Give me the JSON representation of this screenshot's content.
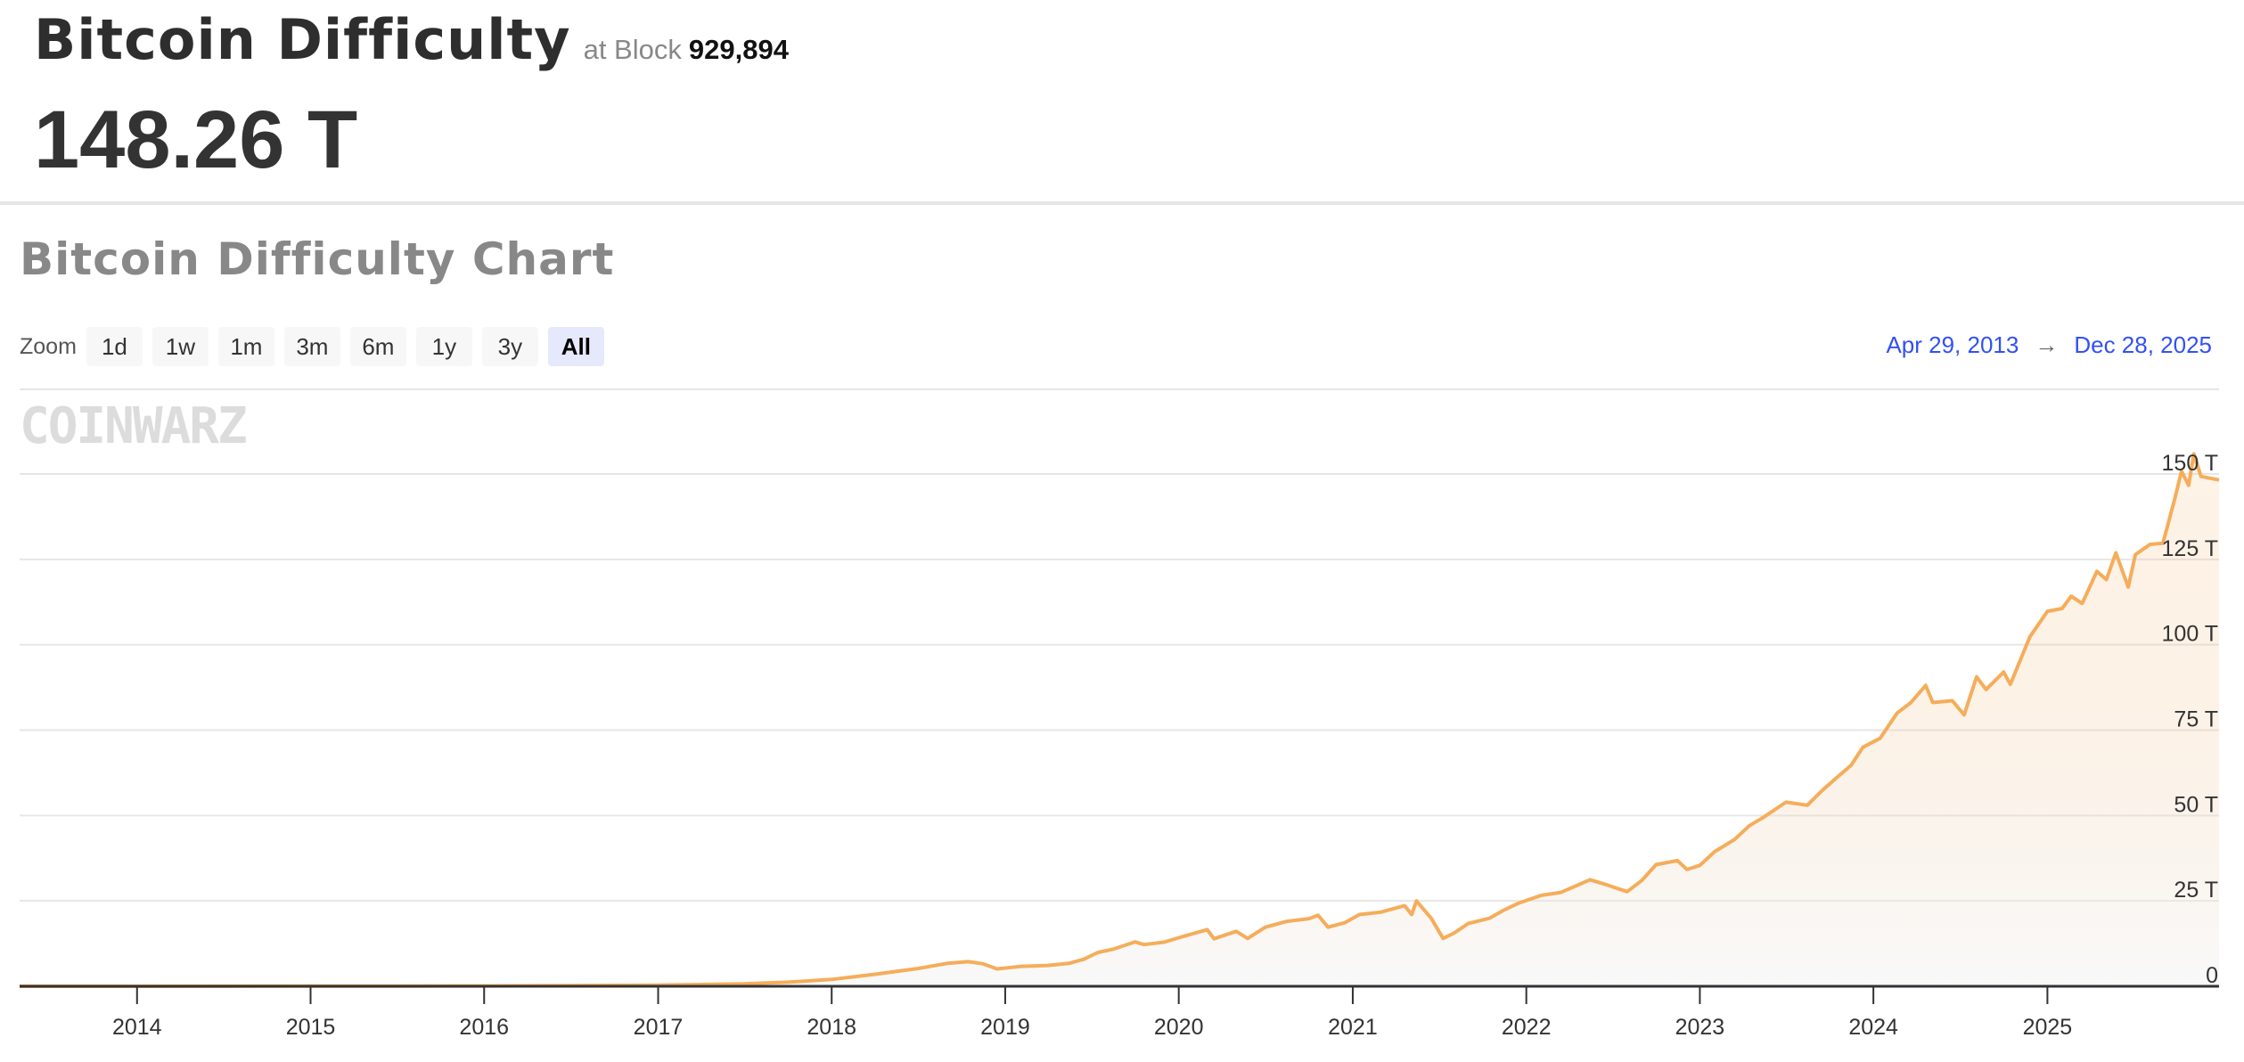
{
  "header": {
    "title": "Bitcoin Difficulty",
    "at_block_label": "at Block",
    "block_number": "929,894",
    "current_value": "148.26 T"
  },
  "chart_section": {
    "title": "Bitcoin Difficulty Chart",
    "zoom_label": "Zoom",
    "zoom_buttons": [
      {
        "label": "1d"
      },
      {
        "label": "1w"
      },
      {
        "label": "1m"
      },
      {
        "label": "3m"
      },
      {
        "label": "6m"
      },
      {
        "label": "1y"
      },
      {
        "label": "3y"
      },
      {
        "label": "All",
        "selected": true
      }
    ],
    "range_from": "Apr 29, 2013",
    "range_to": "Dec 28, 2025",
    "range_arrow_icon": "arrow-right-icon",
    "watermark": "CoinWarz"
  },
  "colors": {
    "line": "#f5ad5b",
    "range_text": "#3350f5",
    "selected_zoom": "#e6e9fb"
  },
  "chart_data": {
    "type": "area",
    "xlabel": "",
    "ylabel": "",
    "xlim": [
      "2013-04-29",
      "2025-12-28"
    ],
    "ylim": [
      0,
      150
    ],
    "y_ticks": [
      {
        "v": 0,
        "label": "0"
      },
      {
        "v": 25,
        "label": "25 T"
      },
      {
        "v": 50,
        "label": "50 T"
      },
      {
        "v": 75,
        "label": "75 T"
      },
      {
        "v": 100,
        "label": "100 T"
      },
      {
        "v": 125,
        "label": "125 T"
      },
      {
        "v": 150,
        "label": "150 T"
      }
    ],
    "x_ticks": [
      "2014",
      "2015",
      "2016",
      "2017",
      "2018",
      "2019",
      "2020",
      "2021",
      "2022",
      "2023",
      "2024",
      "2025"
    ],
    "grid": true,
    "unit": "T",
    "points": [
      [
        "2013-04-29",
        0.01
      ],
      [
        "2014-01-01",
        0.0014
      ],
      [
        "2014-07-01",
        0.017
      ],
      [
        "2015-01-01",
        0.04
      ],
      [
        "2015-07-01",
        0.05
      ],
      [
        "2016-01-01",
        0.1
      ],
      [
        "2016-07-01",
        0.2
      ],
      [
        "2017-01-01",
        0.33
      ],
      [
        "2017-07-01",
        0.7
      ],
      [
        "2017-10-01",
        1.2
      ],
      [
        "2018-01-01",
        2.0
      ],
      [
        "2018-04-01",
        3.5
      ],
      [
        "2018-07-01",
        5.2
      ],
      [
        "2018-09-01",
        6.7
      ],
      [
        "2018-10-15",
        7.2
      ],
      [
        "2018-11-15",
        6.6
      ],
      [
        "2018-12-15",
        5.1
      ],
      [
        "2019-02-01",
        5.8
      ],
      [
        "2019-04-01",
        6.1
      ],
      [
        "2019-05-15",
        6.7
      ],
      [
        "2019-06-15",
        7.9
      ],
      [
        "2019-07-15",
        9.9
      ],
      [
        "2019-08-15",
        10.8
      ],
      [
        "2019-10-01",
        13.0
      ],
      [
        "2019-10-20",
        12.2
      ],
      [
        "2019-12-01",
        12.9
      ],
      [
        "2020-01-15",
        14.8
      ],
      [
        "2020-03-01",
        16.6
      ],
      [
        "2020-03-15",
        13.9
      ],
      [
        "2020-05-01",
        16.1
      ],
      [
        "2020-05-25",
        14.0
      ],
      [
        "2020-07-01",
        17.3
      ],
      [
        "2020-08-15",
        19.0
      ],
      [
        "2020-10-01",
        19.8
      ],
      [
        "2020-10-20",
        20.8
      ],
      [
        "2020-11-10",
        17.3
      ],
      [
        "2020-12-15",
        18.6
      ],
      [
        "2021-01-15",
        21.0
      ],
      [
        "2021-03-01",
        21.7
      ],
      [
        "2021-04-20",
        23.6
      ],
      [
        "2021-05-05",
        21.0
      ],
      [
        "2021-05-15",
        25.0
      ],
      [
        "2021-06-15",
        19.9
      ],
      [
        "2021-07-10",
        14.0
      ],
      [
        "2021-08-01",
        15.5
      ],
      [
        "2021-09-01",
        18.4
      ],
      [
        "2021-10-15",
        19.9
      ],
      [
        "2021-11-15",
        22.3
      ],
      [
        "2021-12-15",
        24.3
      ],
      [
        "2022-02-01",
        26.6
      ],
      [
        "2022-03-15",
        27.5
      ],
      [
        "2022-05-15",
        31.2
      ],
      [
        "2022-06-15",
        29.9
      ],
      [
        "2022-08-01",
        27.7
      ],
      [
        "2022-09-01",
        31.0
      ],
      [
        "2022-10-01",
        35.6
      ],
      [
        "2022-11-15",
        36.8
      ],
      [
        "2022-12-05",
        34.2
      ],
      [
        "2023-01-01",
        35.4
      ],
      [
        "2023-02-01",
        39.4
      ],
      [
        "2023-03-15",
        43.0
      ],
      [
        "2023-04-15",
        47.0
      ],
      [
        "2023-05-15",
        49.5
      ],
      [
        "2023-07-01",
        53.9
      ],
      [
        "2023-08-15",
        53.0
      ],
      [
        "2023-09-15",
        57.3
      ],
      [
        "2023-10-15",
        61.0
      ],
      [
        "2023-11-15",
        64.7
      ],
      [
        "2023-12-10",
        70.0
      ],
      [
        "2024-01-15",
        72.6
      ],
      [
        "2024-02-20",
        80.0
      ],
      [
        "2024-03-20",
        83.1
      ],
      [
        "2024-04-20",
        88.1
      ],
      [
        "2024-05-05",
        83.1
      ],
      [
        "2024-06-15",
        83.6
      ],
      [
        "2024-07-10",
        79.5
      ],
      [
        "2024-08-05",
        90.6
      ],
      [
        "2024-08-25",
        86.9
      ],
      [
        "2024-10-01",
        92.0
      ],
      [
        "2024-10-15",
        88.4
      ],
      [
        "2024-11-05",
        95.5
      ],
      [
        "2024-11-25",
        102.3
      ],
      [
        "2025-01-01",
        109.8
      ],
      [
        "2025-02-01",
        110.6
      ],
      [
        "2025-02-20",
        114.2
      ],
      [
        "2025-03-15",
        112.1
      ],
      [
        "2025-04-15",
        121.5
      ],
      [
        "2025-05-05",
        119.1
      ],
      [
        "2025-05-25",
        126.9
      ],
      [
        "2025-06-20",
        116.9
      ],
      [
        "2025-07-05",
        126.4
      ],
      [
        "2025-08-05",
        129.4
      ],
      [
        "2025-09-01",
        129.7
      ],
      [
        "2025-09-25",
        142.3
      ],
      [
        "2025-10-10",
        150.8
      ],
      [
        "2025-10-25",
        146.7
      ],
      [
        "2025-11-05",
        155.9
      ],
      [
        "2025-11-20",
        149.3
      ],
      [
        "2025-12-28",
        148.26
      ]
    ]
  }
}
